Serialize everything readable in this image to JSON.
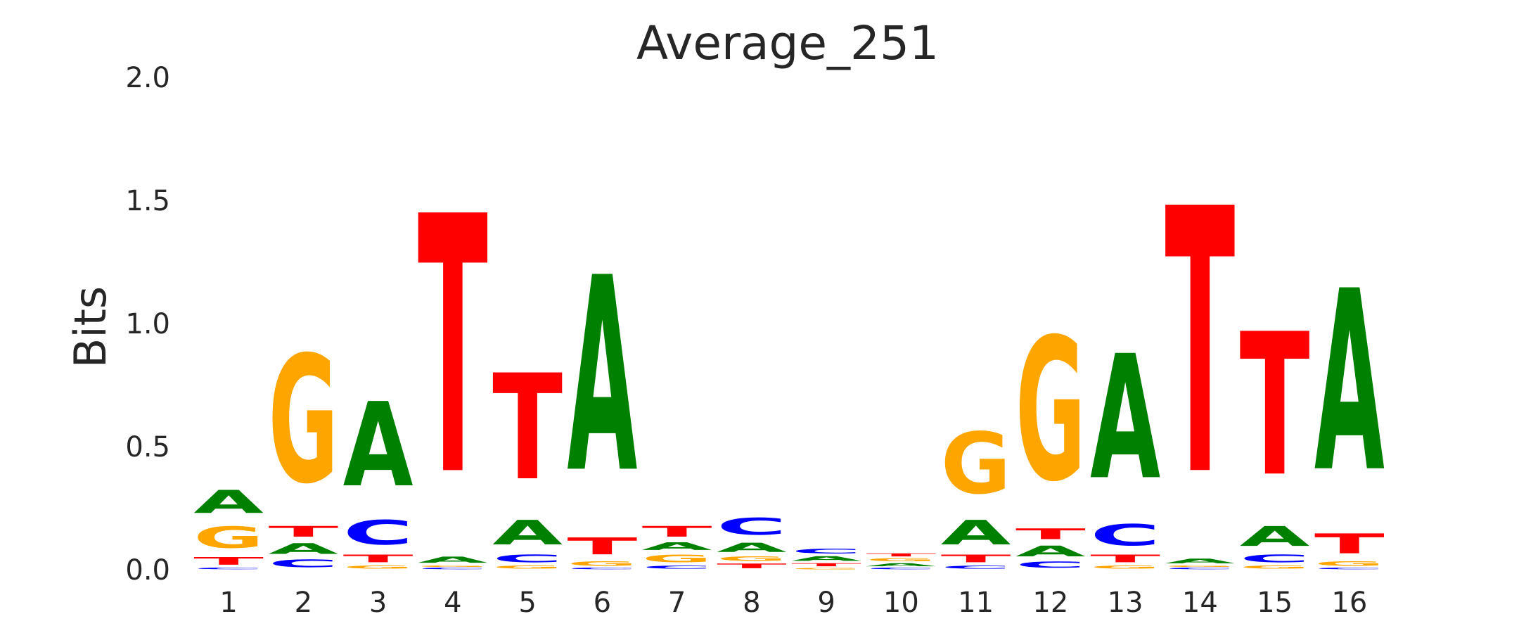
{
  "chart_data": {
    "type": "sequence-logo",
    "title": "Average_251",
    "ylabel": "Bits",
    "xlabel": "",
    "ylim": [
      0,
      2.0
    ],
    "yticks": [
      "0.0",
      "0.5",
      "1.0",
      "1.5",
      "2.0"
    ],
    "grid": false,
    "legend": "none",
    "colors": {
      "A": "#008000",
      "C": "#0000ff",
      "G": "#ffa500",
      "T": "#ff0000"
    },
    "positions": [
      {
        "label": "1",
        "stack": [
          [
            "C",
            0.01
          ],
          [
            "T",
            0.05
          ],
          [
            "G",
            0.14
          ],
          [
            "A",
            0.15
          ]
        ]
      },
      {
        "label": "2",
        "stack": [
          [
            "C",
            0.05
          ],
          [
            "A",
            0.07
          ],
          [
            "T",
            0.07
          ],
          [
            "G",
            0.83
          ]
        ]
      },
      {
        "label": "3",
        "stack": [
          [
            "G",
            0.02
          ],
          [
            "T",
            0.05
          ],
          [
            "C",
            0.16
          ],
          [
            "A",
            0.55
          ]
        ]
      },
      {
        "label": "4",
        "stack": [
          [
            "C",
            0.01
          ],
          [
            "G",
            0.01
          ],
          [
            "A",
            0.04
          ],
          [
            "T",
            1.68
          ]
        ]
      },
      {
        "label": "5",
        "stack": [
          [
            "G",
            0.02
          ],
          [
            "C",
            0.05
          ],
          [
            "A",
            0.16
          ],
          [
            "T",
            0.69
          ]
        ]
      },
      {
        "label": "6",
        "stack": [
          [
            "C",
            0.01
          ],
          [
            "G",
            0.03
          ],
          [
            "T",
            0.11
          ],
          [
            "A",
            1.27
          ]
        ]
      },
      {
        "label": "7",
        "stack": [
          [
            "C",
            0.02
          ],
          [
            "G",
            0.05
          ],
          [
            "A",
            0.05
          ],
          [
            "T",
            0.07
          ]
        ]
      },
      {
        "label": "8",
        "stack": [
          [
            "T",
            0.03
          ],
          [
            "G",
            0.03
          ],
          [
            "A",
            0.06
          ],
          [
            "C",
            0.11
          ]
        ]
      },
      {
        "label": "9",
        "stack": [
          [
            "G",
            0.01
          ],
          [
            "T",
            0.02
          ],
          [
            "A",
            0.03
          ],
          [
            "C",
            0.03
          ]
        ]
      },
      {
        "label": "10",
        "stack": [
          [
            "C",
            0.01
          ],
          [
            "A",
            0.02
          ],
          [
            "G",
            0.02
          ],
          [
            "T",
            0.02
          ]
        ]
      },
      {
        "label": "11",
        "stack": [
          [
            "C",
            0.02
          ],
          [
            "T",
            0.05
          ],
          [
            "A",
            0.16
          ],
          [
            "G",
            0.4
          ]
        ]
      },
      {
        "label": "12",
        "stack": [
          [
            "C",
            0.04
          ],
          [
            "A",
            0.07
          ],
          [
            "T",
            0.07
          ],
          [
            "G",
            0.93
          ]
        ]
      },
      {
        "label": "13",
        "stack": [
          [
            "G",
            0.02
          ],
          [
            "T",
            0.05
          ],
          [
            "C",
            0.14
          ],
          [
            "A",
            0.81
          ]
        ]
      },
      {
        "label": "14",
        "stack": [
          [
            "C",
            0.01
          ],
          [
            "G",
            0.01
          ],
          [
            "A",
            0.03
          ],
          [
            "T",
            1.73
          ]
        ]
      },
      {
        "label": "15",
        "stack": [
          [
            "G",
            0.02
          ],
          [
            "C",
            0.05
          ],
          [
            "A",
            0.13
          ],
          [
            "T",
            0.93
          ]
        ]
      },
      {
        "label": "16",
        "stack": [
          [
            "C",
            0.01
          ],
          [
            "G",
            0.03
          ],
          [
            "T",
            0.13
          ],
          [
            "A",
            1.18
          ]
        ]
      }
    ]
  }
}
